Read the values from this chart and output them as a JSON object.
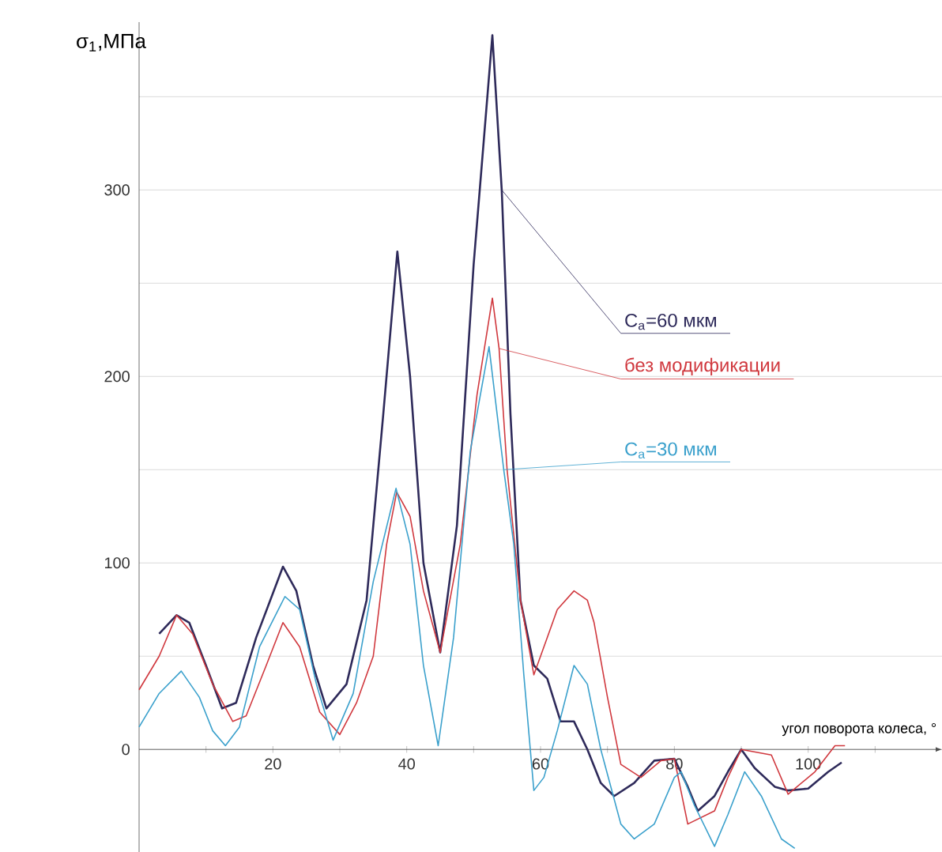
{
  "chart_data": {
    "type": "line",
    "xlabel": "угол поворота колеса, °",
    "ylabel": "σ$_{1}$,МПа",
    "xlim": [
      0,
      120
    ],
    "ylim": [
      -55,
      390
    ],
    "xticks": [
      {
        "value": 10,
        "label": null
      },
      20,
      {
        "value": 30,
        "label": null
      },
      40,
      {
        "value": 50,
        "label": null
      },
      60,
      {
        "value": 70,
        "label": null
      },
      80,
      {
        "value": 90,
        "label": null
      },
      100,
      {
        "value": 110,
        "label": null
      }
    ],
    "yticks": [
      0,
      {
        "value": 50,
        "label": null
      },
      100,
      {
        "value": 150,
        "label": null
      },
      200,
      {
        "value": 250,
        "label": null
      },
      300,
      {
        "value": 350,
        "label": null
      }
    ],
    "grid": "y",
    "legend": false,
    "marker": "none",
    "line_style": "solid",
    "series": [
      {
        "name": "C$_{a}$=60 мкм",
        "color": "#2e2a5a",
        "x": [
          3,
          5.6,
          7.5,
          10,
          12.4,
          14.5,
          17.5,
          21.5,
          23.5,
          26,
          28,
          31,
          34,
          36.5,
          38.6,
          40.5,
          42.5,
          45,
          47.5,
          50,
          52.8,
          54.2,
          55.5,
          57,
          59,
          61,
          63,
          65,
          67,
          69,
          71,
          74,
          77,
          80,
          82,
          83.5,
          86,
          88,
          90,
          92,
          95,
          97,
          100,
          103,
          105
        ],
        "values": [
          62,
          72,
          68,
          45,
          22,
          25,
          60,
          98,
          85,
          45,
          22,
          35,
          80,
          180,
          267,
          200,
          100,
          52,
          120,
          260,
          383,
          300,
          180,
          80,
          45,
          38,
          15,
          15,
          0,
          -18,
          -25,
          -18,
          -6,
          -5,
          -20,
          -33,
          -25,
          -12,
          0,
          -10,
          -20,
          -22,
          -21,
          -12,
          -7
        ]
      },
      {
        "name": "без модификации",
        "color": "#d0383e",
        "x": [
          0,
          3,
          5.6,
          8,
          11,
          14,
          16,
          19,
          21.5,
          24,
          27,
          30,
          32.5,
          35,
          37,
          38.5,
          40.5,
          42.5,
          45,
          48,
          50.5,
          52.8,
          53.8,
          55,
          57,
          59,
          61,
          62.5,
          65,
          67,
          68,
          70,
          72,
          75,
          78,
          80,
          82,
          86,
          88,
          90,
          94.5,
          97,
          101,
          104,
          105.5
        ],
        "values": [
          32,
          50,
          72,
          62,
          35,
          15,
          18,
          45,
          68,
          55,
          20,
          8,
          25,
          50,
          110,
          138,
          125,
          85,
          52,
          110,
          190,
          242,
          215,
          150,
          80,
          40,
          60,
          75,
          85,
          80,
          68,
          28,
          -8,
          -15,
          -6,
          -5,
          -40,
          -33,
          -15,
          0,
          -3,
          -24,
          -12,
          2,
          2
        ]
      },
      {
        "name": "C$_{a}$=30 мкм",
        "color": "#3aa0cc",
        "x": [
          0,
          3,
          6.3,
          9,
          11,
          12.9,
          15,
          18,
          21.8,
          24,
          26.5,
          29,
          32,
          35,
          38.4,
          40.5,
          42.5,
          44.7,
          47,
          49.5,
          52.3,
          54.5,
          56,
          57.5,
          59,
          60.5,
          62.5,
          65,
          67,
          69,
          72,
          74,
          77,
          80,
          81,
          83,
          86,
          88,
          90.5,
          93,
          96,
          98
        ],
        "values": [
          12,
          30,
          42,
          28,
          10,
          2,
          12,
          55,
          82,
          75,
          35,
          5,
          30,
          90,
          140,
          110,
          45,
          2,
          60,
          160,
          216,
          150,
          110,
          40,
          -22,
          -15,
          10,
          45,
          35,
          0,
          -40,
          -48,
          -40,
          -15,
          -12,
          -30,
          -52,
          -35,
          -12,
          -25,
          -48,
          -53
        ]
      }
    ]
  }
}
